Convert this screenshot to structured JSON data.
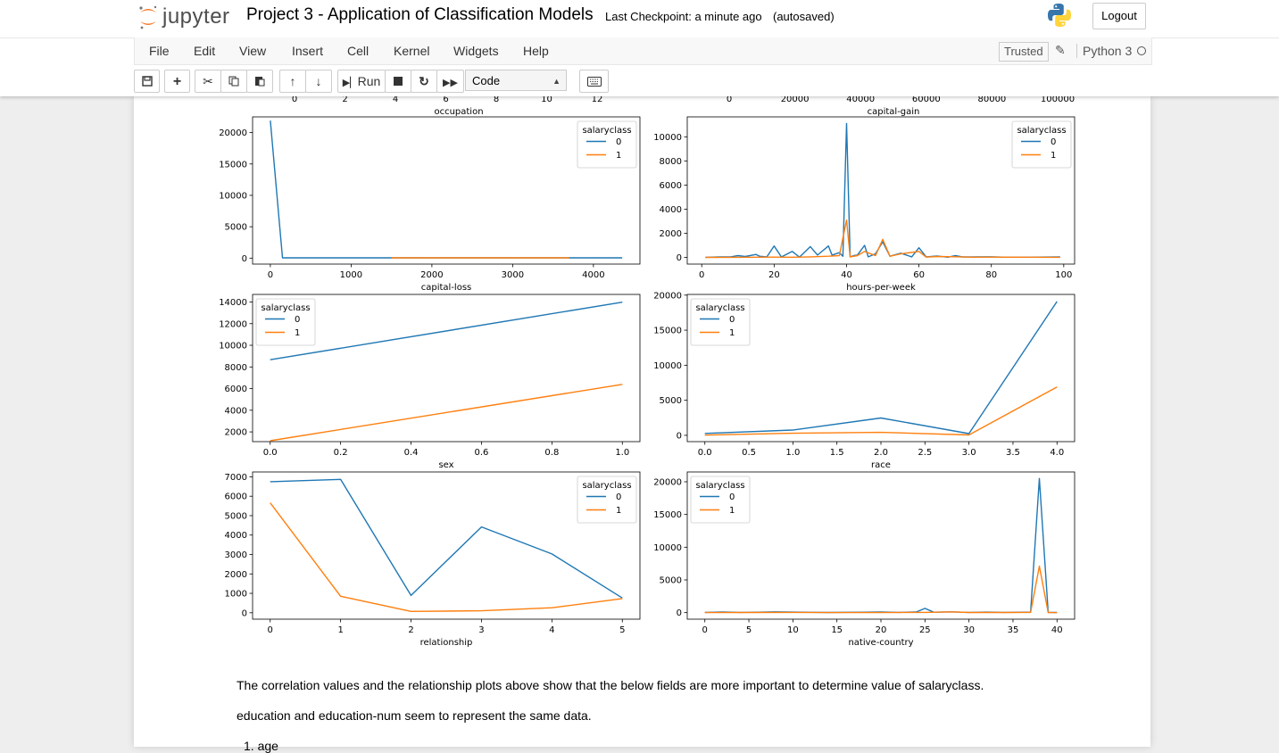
{
  "header": {
    "logo_text": "jupyter",
    "notebook_title": "Project 3 - Application of Classification Models",
    "checkpoint": "Last Checkpoint: a minute ago",
    "autosave": "(autosaved)",
    "logout_label": "Logout"
  },
  "menubar": {
    "items": [
      "File",
      "Edit",
      "View",
      "Insert",
      "Cell",
      "Kernel",
      "Widgets",
      "Help"
    ],
    "trusted": "Trusted",
    "kernel": "Python 3"
  },
  "toolbar": {
    "run_label": "Run",
    "cell_type": "Code",
    "icons": [
      "save-icon",
      "add-icon",
      "cut-icon",
      "copy-icon",
      "paste-icon",
      "move-up-icon",
      "move-down-icon",
      "run-icon",
      "stop-icon",
      "restart-icon",
      "fast-forward-icon",
      "keyboard-icon"
    ]
  },
  "colors": {
    "series0": "#1f77b4",
    "series1": "#ff7f0e"
  },
  "chart_data": [
    {
      "type": "line",
      "partial": "top",
      "xlabel": "occupation",
      "xticks": [
        0,
        2,
        4,
        6,
        8,
        10,
        12
      ]
    },
    {
      "type": "line",
      "partial": "top",
      "xlabel": "capital-gain",
      "xticks": [
        0,
        20000,
        40000,
        60000,
        80000,
        100000
      ]
    },
    {
      "type": "line",
      "xlabel": "capital-loss",
      "xlim": [
        -220,
        4576
      ],
      "ylim": [
        -950,
        22500
      ],
      "xticks": [
        0,
        1000,
        2000,
        3000,
        4000
      ],
      "yticks": [
        0,
        5000,
        10000,
        15000,
        20000
      ],
      "legend": {
        "title": "salaryclass",
        "labels": [
          "0",
          "1"
        ],
        "position": "upper right"
      },
      "series": [
        {
          "name": "0",
          "points": [
            [
              0,
              21900
            ],
            [
              150,
              40
            ],
            [
              600,
              40
            ],
            [
              1000,
              40
            ],
            [
              1500,
              40
            ],
            [
              1900,
              40
            ],
            [
              2000,
              40
            ],
            [
              2200,
              40
            ],
            [
              2500,
              40
            ],
            [
              2800,
              40
            ],
            [
              3200,
              40
            ],
            [
              3700,
              40
            ],
            [
              4356,
              40
            ]
          ]
        },
        {
          "name": "1",
          "points": [
            [
              1500,
              40
            ],
            [
              1600,
              40
            ],
            [
              1900,
              40
            ],
            [
              2200,
              40
            ],
            [
              2400,
              40
            ],
            [
              2600,
              40
            ],
            [
              3000,
              40
            ],
            [
              3700,
              40
            ]
          ]
        }
      ]
    },
    {
      "type": "line",
      "xlabel": "hours-per-week",
      "xlim": [
        -4,
        103
      ],
      "ylim": [
        -550,
        11650
      ],
      "xticks": [
        0,
        20,
        40,
        60,
        80,
        100
      ],
      "yticks": [
        0,
        2000,
        4000,
        6000,
        8000,
        10000
      ],
      "legend": {
        "title": "salaryclass",
        "labels": [
          "0",
          "1"
        ],
        "position": "upper right"
      },
      "series": [
        {
          "name": "0",
          "points": [
            [
              1,
              10
            ],
            [
              5,
              40
            ],
            [
              8,
              50
            ],
            [
              10,
              150
            ],
            [
              12,
              80
            ],
            [
              15,
              250
            ],
            [
              16,
              100
            ],
            [
              18,
              50
            ],
            [
              20,
              950
            ],
            [
              22,
              40
            ],
            [
              25,
              500
            ],
            [
              27,
              30
            ],
            [
              30,
              900
            ],
            [
              32,
              200
            ],
            [
              35,
              950
            ],
            [
              36,
              200
            ],
            [
              38,
              400
            ],
            [
              39,
              100
            ],
            [
              40,
              11100
            ],
            [
              41,
              50
            ],
            [
              42,
              150
            ],
            [
              43,
              200
            ],
            [
              45,
              1000
            ],
            [
              46,
              50
            ],
            [
              48,
              300
            ],
            [
              50,
              1300
            ],
            [
              52,
              100
            ],
            [
              55,
              350
            ],
            [
              58,
              50
            ],
            [
              60,
              800
            ],
            [
              62,
              50
            ],
            [
              65,
              120
            ],
            [
              68,
              20
            ],
            [
              70,
              150
            ],
            [
              72,
              40
            ],
            [
              75,
              40
            ],
            [
              80,
              60
            ],
            [
              84,
              20
            ],
            [
              90,
              20
            ],
            [
              99,
              40
            ]
          ]
        },
        {
          "name": "1",
          "points": [
            [
              1,
              5
            ],
            [
              10,
              10
            ],
            [
              20,
              30
            ],
            [
              25,
              20
            ],
            [
              30,
              50
            ],
            [
              35,
              100
            ],
            [
              38,
              150
            ],
            [
              40,
              3100
            ],
            [
              41,
              50
            ],
            [
              43,
              150
            ],
            [
              45,
              500
            ],
            [
              48,
              150
            ],
            [
              50,
              1500
            ],
            [
              52,
              100
            ],
            [
              55,
              300
            ],
            [
              60,
              500
            ],
            [
              62,
              30
            ],
            [
              65,
              80
            ],
            [
              70,
              60
            ],
            [
              75,
              20
            ],
            [
              80,
              30
            ],
            [
              99,
              10
            ]
          ]
        }
      ]
    },
    {
      "type": "line",
      "xlabel": "sex",
      "xlim": [
        -0.05,
        1.05
      ],
      "ylim": [
        1100,
        14700
      ],
      "xticks": [
        0.0,
        0.2,
        0.4,
        0.6,
        0.8,
        1.0
      ],
      "yticks": [
        2000,
        4000,
        6000,
        8000,
        10000,
        12000,
        14000
      ],
      "legend": {
        "title": "salaryclass",
        "labels": [
          "0",
          "1"
        ],
        "position": "upper left"
      },
      "series": [
        {
          "name": "0",
          "points": [
            [
              0,
              8670
            ],
            [
              1,
              13980
            ]
          ]
        },
        {
          "name": "1",
          "points": [
            [
              0,
              1180
            ],
            [
              1,
              6390
            ]
          ]
        }
      ]
    },
    {
      "type": "line",
      "xlabel": "race",
      "xlim": [
        -0.2,
        4.2
      ],
      "ylim": [
        -900,
        20100
      ],
      "xticks": [
        0.0,
        0.5,
        1.0,
        1.5,
        2.0,
        2.5,
        3.0,
        3.5,
        4.0
      ],
      "yticks": [
        0,
        5000,
        10000,
        15000,
        20000
      ],
      "legend": {
        "title": "salaryclass",
        "labels": [
          "0",
          "1"
        ],
        "position": "upper left"
      },
      "series": [
        {
          "name": "0",
          "points": [
            [
              0,
              275
            ],
            [
              1,
              760
            ],
            [
              2,
              2470
            ],
            [
              3,
              245
            ],
            [
              4,
              19100
            ]
          ]
        },
        {
          "name": "1",
          "points": [
            [
              0,
              35
            ],
            [
              1,
              300
            ],
            [
              2,
              420
            ],
            [
              3,
              55
            ],
            [
              4,
              6900
            ]
          ]
        }
      ]
    },
    {
      "type": "line",
      "xlabel": "relationship",
      "xlim": [
        -0.25,
        5.25
      ],
      "ylim": [
        -330,
        7250
      ],
      "xticks": [
        0,
        1,
        2,
        3,
        4,
        5
      ],
      "yticks": [
        0,
        1000,
        2000,
        3000,
        4000,
        5000,
        6000,
        7000
      ],
      "legend": {
        "title": "salaryclass",
        "labels": [
          "0",
          "1"
        ],
        "position": "upper right"
      },
      "series": [
        {
          "name": "0",
          "points": [
            [
              0,
              6750
            ],
            [
              1,
              6870
            ],
            [
              2,
              890
            ],
            [
              3,
              4420
            ],
            [
              4,
              3030
            ],
            [
              5,
              760
            ]
          ]
        },
        {
          "name": "1",
          "points": [
            [
              0,
              5660
            ],
            [
              1,
              850
            ],
            [
              2,
              70
            ],
            [
              3,
              100
            ],
            [
              4,
              260
            ],
            [
              5,
              730
            ]
          ]
        }
      ]
    },
    {
      "type": "line",
      "xlabel": "native-country",
      "xlim": [
        -2,
        42
      ],
      "ylim": [
        -1000,
        21500
      ],
      "xticks": [
        0,
        5,
        10,
        15,
        20,
        25,
        30,
        35,
        40
      ],
      "yticks": [
        0,
        5000,
        10000,
        15000,
        20000
      ],
      "legend": {
        "title": "salaryclass",
        "labels": [
          "0",
          "1"
        ],
        "position": "upper left"
      },
      "series": [
        {
          "name": "0",
          "points": [
            [
              0,
              40
            ],
            [
              2,
              90
            ],
            [
              4,
              40
            ],
            [
              6,
              60
            ],
            [
              8,
              120
            ],
            [
              10,
              80
            ],
            [
              12,
              50
            ],
            [
              14,
              20
            ],
            [
              16,
              50
            ],
            [
              18,
              60
            ],
            [
              20,
              100
            ],
            [
              22,
              40
            ],
            [
              24,
              90
            ],
            [
              25,
              650
            ],
            [
              26,
              60
            ],
            [
              28,
              120
            ],
            [
              30,
              40
            ],
            [
              32,
              80
            ],
            [
              34,
              30
            ],
            [
              36,
              60
            ],
            [
              37,
              80
            ],
            [
              38,
              20500
            ],
            [
              39,
              40
            ],
            [
              40,
              20
            ]
          ]
        },
        {
          "name": "1",
          "points": [
            [
              0,
              10
            ],
            [
              5,
              20
            ],
            [
              10,
              30
            ],
            [
              15,
              5
            ],
            [
              20,
              15
            ],
            [
              25,
              30
            ],
            [
              28,
              120
            ],
            [
              30,
              20
            ],
            [
              35,
              20
            ],
            [
              37,
              30
            ],
            [
              38,
              7100
            ],
            [
              39,
              10
            ],
            [
              40,
              5
            ]
          ]
        }
      ]
    }
  ],
  "text_cells": {
    "para1": "The correlation values and the relationship plots above show that the below fields are more important to determine value of salaryclass.",
    "para2": "education and education-num seem to represent the same data.",
    "list_item_1": "age"
  }
}
